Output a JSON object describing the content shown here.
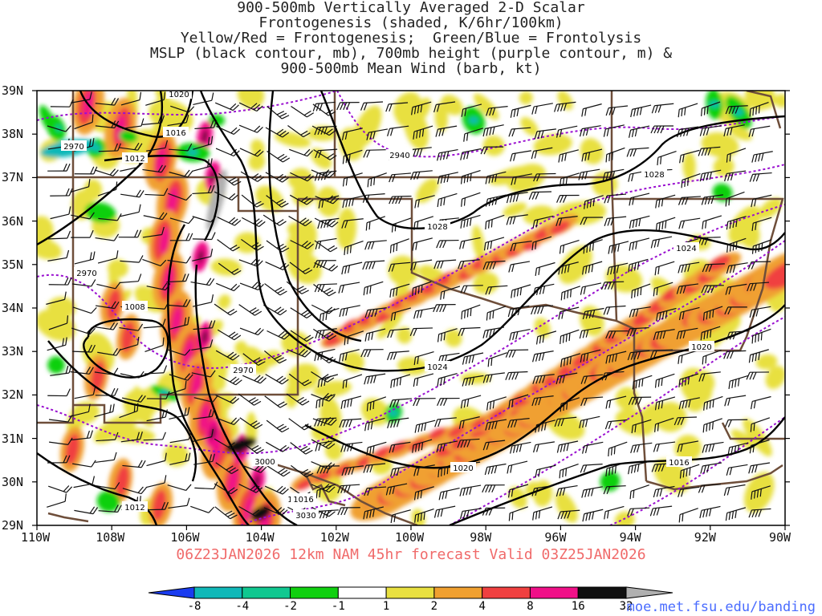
{
  "title_lines": [
    "900-500mb Vertically Averaged 2-D Scalar",
    "Frontogenesis (shaded, K/6hr/100km)",
    "Yellow/Red = Frontogenesis;  Green/Blue = Frontolysis",
    "MSLP (black contour, mb), 700mb height (purple contour, m) &",
    "900-500mb Mean Wind (barb, kt)"
  ],
  "lat_labels": [
    "39N",
    "38N",
    "37N",
    "36N",
    "35N",
    "34N",
    "33N",
    "32N",
    "31N",
    "30N",
    "29N"
  ],
  "lon_labels": [
    "110W",
    "108W",
    "106W",
    "104W",
    "102W",
    "100W",
    "98W",
    "96W",
    "94W",
    "92W",
    "90W"
  ],
  "forecast_info": "06Z23JAN2026 12km NAM 45hr forecast Valid 03Z25JAN2026",
  "colorbar": {
    "labels": [
      "-8",
      "-4",
      "-2",
      "-1",
      "1",
      "2",
      "4",
      "8",
      "16",
      "32"
    ],
    "colors": [
      "#1a3cf0",
      "#10b8b8",
      "#10c890",
      "#10d010",
      "#ffffff",
      "#e8e040",
      "#f0a030",
      "#f04040",
      "#f01088",
      "#101010",
      "#b0b0b0"
    ]
  },
  "mslp_labels": [
    "1020",
    "1016",
    "1012",
    "1008",
    "1016",
    "1028",
    "1024",
    "1024",
    "1020",
    "1020",
    "1016",
    "1016",
    "1012",
    "1028"
  ],
  "height_labels": [
    "2970",
    "2940",
    "2970",
    "2970",
    "3000",
    "3030"
  ],
  "url": "moe.met.fsu.edu/banding",
  "colors": {
    "mslp": "#000000",
    "height": "#9a10d0",
    "border": "#6e4e3a"
  }
}
